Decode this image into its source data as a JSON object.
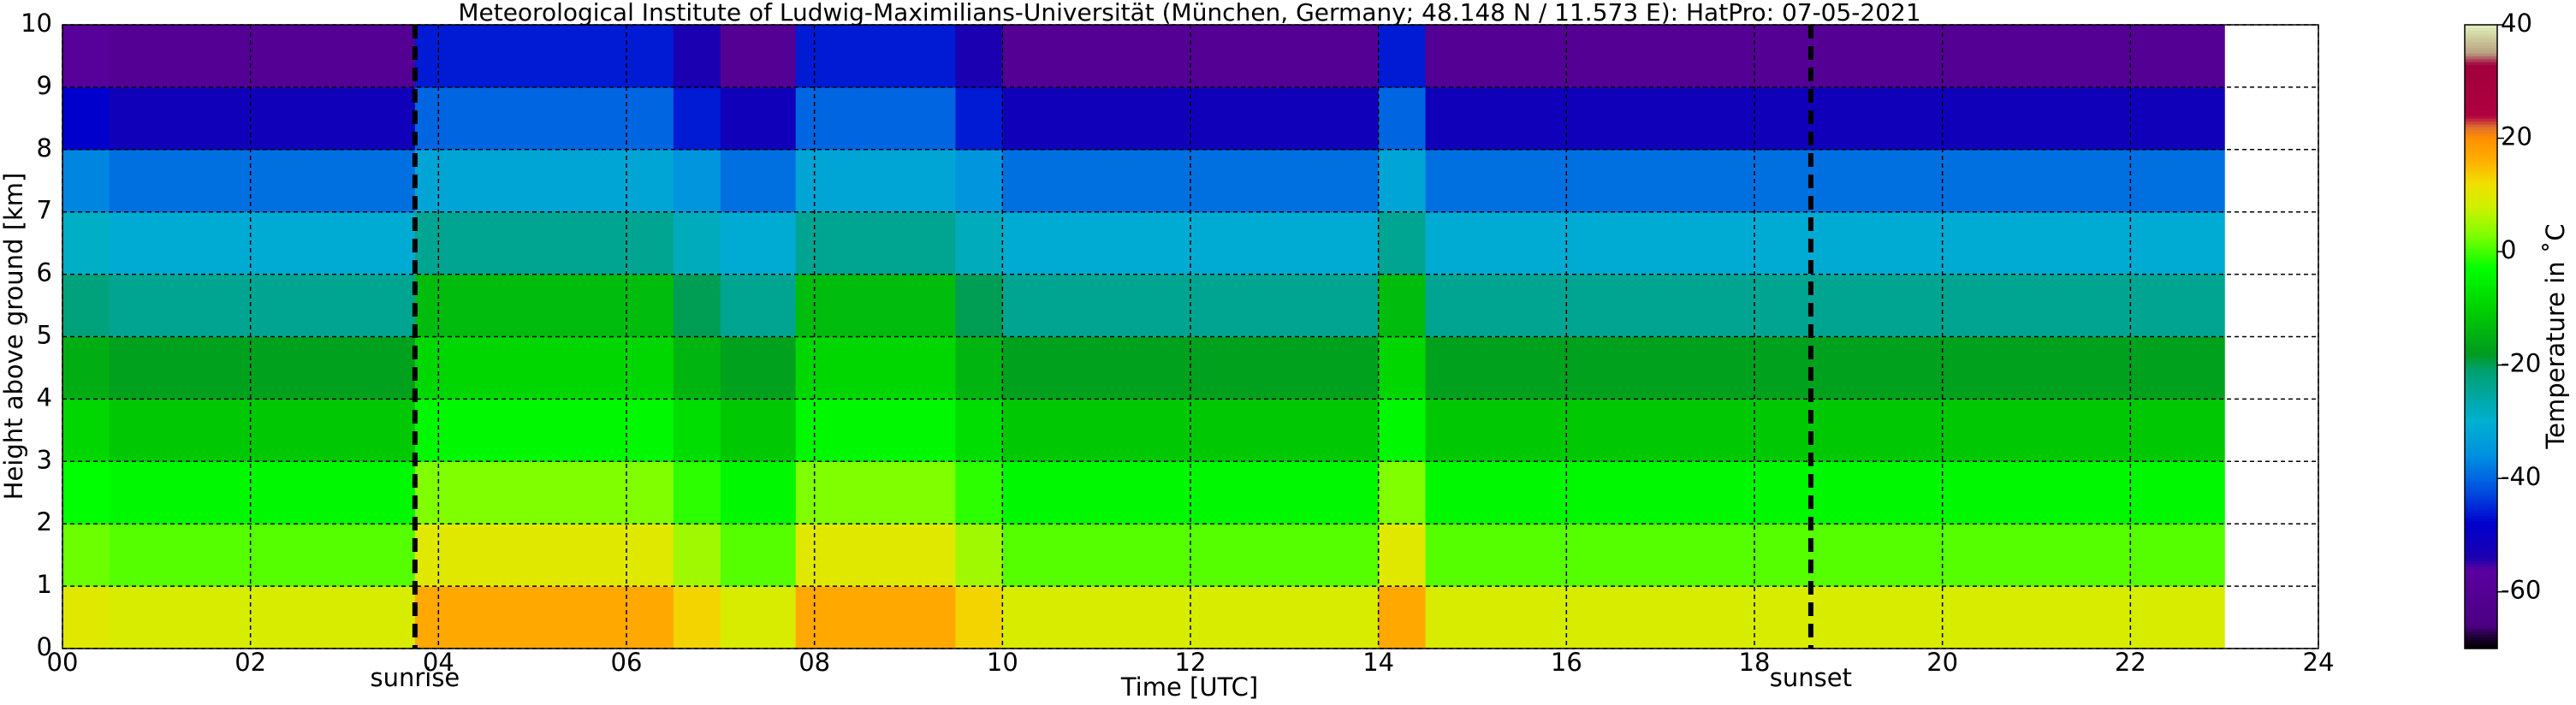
{
  "chart_data": {
    "type": "heatmap",
    "title": "Meteorological Institute of Ludwig-Maximilians-Universität (München, Germany; 48.148 N / 11.573 E):    HatPro: 07-05-2021",
    "xlabel": "Time [UTC]",
    "ylabel": "Height above ground [km]",
    "colorbar_label": "Temperature in ˚C",
    "xlim": [
      0,
      24
    ],
    "ylim": [
      0,
      10
    ],
    "xticks": [
      {
        "value": 0,
        "label": "00"
      },
      {
        "value": 2,
        "label": "02"
      },
      {
        "value": 4,
        "label": "04"
      },
      {
        "value": 6,
        "label": "06"
      },
      {
        "value": 8,
        "label": "08"
      },
      {
        "value": 10,
        "label": "10"
      },
      {
        "value": 12,
        "label": "12"
      },
      {
        "value": 14,
        "label": "14"
      },
      {
        "value": 16,
        "label": "16"
      },
      {
        "value": 18,
        "label": "18"
      },
      {
        "value": 20,
        "label": "20"
      },
      {
        "value": 22,
        "label": "22"
      },
      {
        "value": 24,
        "label": "24"
      }
    ],
    "yticks": [
      0,
      1,
      2,
      3,
      4,
      5,
      6,
      7,
      8,
      9,
      10
    ],
    "clim": [
      -70,
      40
    ],
    "cticks": [
      -60,
      -40,
      -20,
      0,
      20,
      40
    ],
    "grid": true,
    "sun_events": [
      {
        "label": "sunrise",
        "time": 3.75
      },
      {
        "label": "sunset",
        "time": 18.6
      }
    ],
    "x_edges": [
      0,
      0.5,
      1,
      2,
      3,
      3.75,
      4.5,
      5.5,
      6.5,
      7,
      7.8,
      8.5,
      9.5,
      10,
      11,
      12,
      13,
      14,
      14.5,
      15,
      16,
      17,
      18,
      19,
      20,
      21,
      22,
      23
    ],
    "y_edges": [
      0,
      1,
      2,
      3,
      4,
      5,
      6,
      7,
      8,
      9,
      10
    ],
    "values": [
      [
        10,
        9,
        9,
        9,
        9,
        17,
        17,
        17,
        13,
        9,
        17,
        17,
        13,
        9,
        9,
        9,
        9,
        17,
        9,
        9,
        9,
        9,
        9,
        9,
        9,
        9,
        9
      ],
      [
        2,
        1,
        1,
        1,
        1,
        10,
        10,
        10,
        5,
        1,
        10,
        10,
        5,
        1,
        1,
        1,
        1,
        10,
        1,
        1,
        1,
        1,
        1,
        1,
        1,
        1,
        1
      ],
      [
        -3,
        -4,
        -4,
        -4,
        -4,
        3,
        3,
        3,
        -1,
        -4,
        3,
        3,
        -1,
        -4,
        -4,
        -4,
        -4,
        3,
        -4,
        -4,
        -4,
        -4,
        -4,
        -4,
        -4,
        -4,
        -4
      ],
      [
        -9,
        -11,
        -11,
        -11,
        -11,
        -4,
        -4,
        -4,
        -8,
        -11,
        -4,
        -4,
        -8,
        -11,
        -11,
        -11,
        -11,
        -4,
        -11,
        -11,
        -11,
        -11,
        -11,
        -11,
        -11,
        -11,
        -11
      ],
      [
        -15,
        -17,
        -17,
        -17,
        -17,
        -9,
        -9,
        -9,
        -14,
        -17,
        -9,
        -9,
        -14,
        -17,
        -17,
        -17,
        -17,
        -9,
        -17,
        -17,
        -17,
        -17,
        -17,
        -17,
        -17,
        -17,
        -17
      ],
      [
        -22,
        -24,
        -24,
        -24,
        -24,
        -13,
        -13,
        -13,
        -20,
        -24,
        -13,
        -13,
        -20,
        -24,
        -24,
        -24,
        -24,
        -13,
        -24,
        -24,
        -24,
        -24,
        -24,
        -24,
        -24,
        -24,
        -24
      ],
      [
        -29,
        -31,
        -31,
        -31,
        -31,
        -24,
        -24,
        -24,
        -28,
        -31,
        -24,
        -24,
        -28,
        -31,
        -31,
        -31,
        -31,
        -24,
        -31,
        -31,
        -31,
        -31,
        -31,
        -31,
        -31,
        -31,
        -31
      ],
      [
        -37,
        -39,
        -39,
        -39,
        -39,
        -32,
        -32,
        -32,
        -35,
        -39,
        -32,
        -32,
        -35,
        -39,
        -39,
        -39,
        -39,
        -32,
        -39,
        -39,
        -39,
        -39,
        -39,
        -39,
        -39,
        -39,
        -39
      ],
      [
        -48,
        -52,
        -52,
        -52,
        -52,
        -40,
        -40,
        -40,
        -46,
        -52,
        -40,
        -40,
        -46,
        -52,
        -52,
        -52,
        -52,
        -40,
        -52,
        -52,
        -52,
        -52,
        -52,
        -52,
        -52,
        -52,
        -52
      ],
      [
        -58,
        -60,
        -60,
        -60,
        -60,
        -46,
        -46,
        -46,
        -54,
        -60,
        -46,
        -46,
        -54,
        -60,
        -60,
        -60,
        -60,
        -46,
        -60,
        -60,
        -60,
        -60,
        -60,
        -60,
        -60,
        -60,
        -60
      ]
    ],
    "colormap": [
      {
        "value": -70,
        "color": "#000000"
      },
      {
        "value": -68,
        "color": "#1a0030"
      },
      {
        "value": -66,
        "color": "#4b0082"
      },
      {
        "value": -56,
        "color": "#5a00a0"
      },
      {
        "value": -54,
        "color": "#1a00b0"
      },
      {
        "value": -48,
        "color": "#0000cd"
      },
      {
        "value": -42,
        "color": "#0050e0"
      },
      {
        "value": -36,
        "color": "#0090e0"
      },
      {
        "value": -30,
        "color": "#00b0d0"
      },
      {
        "value": -26,
        "color": "#00a8a8"
      },
      {
        "value": -21,
        "color": "#00a070"
      },
      {
        "value": -18,
        "color": "#009a20"
      },
      {
        "value": -10,
        "color": "#00d000"
      },
      {
        "value": -3,
        "color": "#00ff00"
      },
      {
        "value": 3,
        "color": "#80ff00"
      },
      {
        "value": 8,
        "color": "#d0f000"
      },
      {
        "value": 12,
        "color": "#f0e000"
      },
      {
        "value": 16,
        "color": "#ffb000"
      },
      {
        "value": 20,
        "color": "#ff9000"
      },
      {
        "value": 22,
        "color": "#e07030"
      },
      {
        "value": 24,
        "color": "#b00040"
      },
      {
        "value": 33,
        "color": "#a0003c"
      },
      {
        "value": 35,
        "color": "#b8a080"
      },
      {
        "value": 38,
        "color": "#d0d0a0"
      },
      {
        "value": 40,
        "color": "#e0f0c0"
      }
    ]
  }
}
